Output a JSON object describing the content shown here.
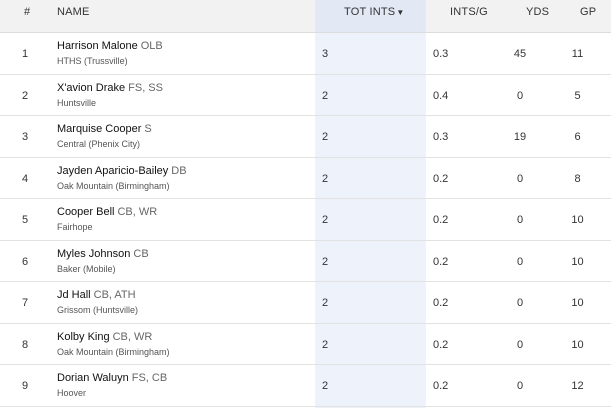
{
  "headers": {
    "rank": "#",
    "name": "NAME",
    "tot_ints": "TOT INTS",
    "ints_per_game": "INTS/G",
    "yds": "YDS",
    "gp": "GP",
    "sort_arrow": "▼"
  },
  "rows": [
    {
      "rank": "1",
      "name": "Harrison Malone",
      "pos": "OLB",
      "school": "HTHS (Trussville)",
      "tot_ints": "3",
      "ints_per_game": "0.3",
      "yds": "45",
      "gp": "11"
    },
    {
      "rank": "2",
      "name": "X'avion Drake",
      "pos": "FS, SS",
      "school": "Huntsville",
      "tot_ints": "2",
      "ints_per_game": "0.4",
      "yds": "0",
      "gp": "5"
    },
    {
      "rank": "3",
      "name": "Marquise Cooper",
      "pos": "S",
      "school": "Central (Phenix City)",
      "tot_ints": "2",
      "ints_per_game": "0.3",
      "yds": "19",
      "gp": "6"
    },
    {
      "rank": "4",
      "name": "Jayden Aparicio-Bailey",
      "pos": "DB",
      "school": "Oak Mountain (Birmingham)",
      "tot_ints": "2",
      "ints_per_game": "0.2",
      "yds": "0",
      "gp": "8"
    },
    {
      "rank": "5",
      "name": "Cooper Bell",
      "pos": "CB, WR",
      "school": "Fairhope",
      "tot_ints": "2",
      "ints_per_game": "0.2",
      "yds": "0",
      "gp": "10"
    },
    {
      "rank": "6",
      "name": "Myles Johnson",
      "pos": "CB",
      "school": "Baker (Mobile)",
      "tot_ints": "2",
      "ints_per_game": "0.2",
      "yds": "0",
      "gp": "10"
    },
    {
      "rank": "7",
      "name": "Jd Hall",
      "pos": "CB, ATH",
      "school": "Grissom (Huntsville)",
      "tot_ints": "2",
      "ints_per_game": "0.2",
      "yds": "0",
      "gp": "10"
    },
    {
      "rank": "8",
      "name": "Kolby King",
      "pos": "CB, WR",
      "school": "Oak Mountain (Birmingham)",
      "tot_ints": "2",
      "ints_per_game": "0.2",
      "yds": "0",
      "gp": "10"
    },
    {
      "rank": "9",
      "name": "Dorian Waluyn",
      "pos": "FS, CB",
      "school": "Hoover",
      "tot_ints": "2",
      "ints_per_game": "0.2",
      "yds": "0",
      "gp": "12"
    }
  ]
}
